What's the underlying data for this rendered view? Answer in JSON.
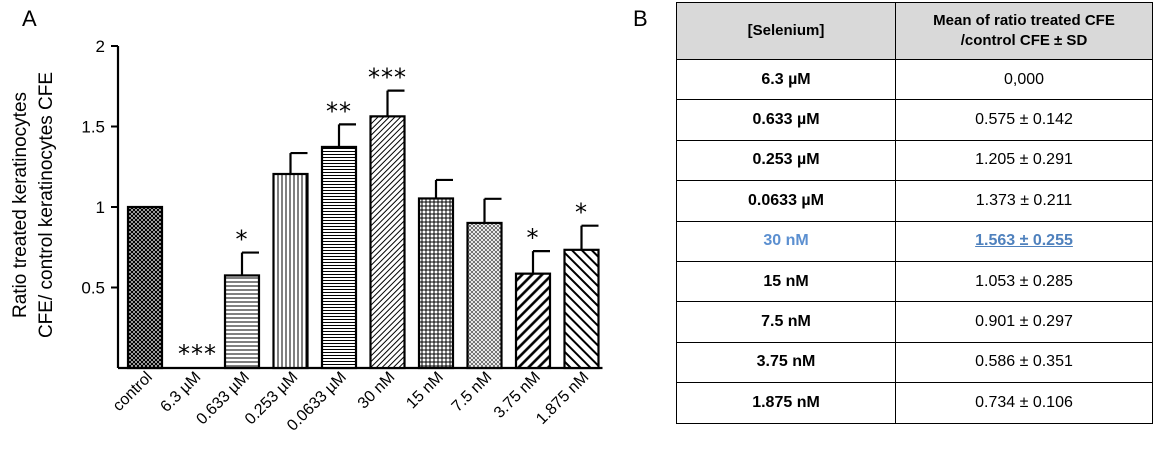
{
  "panel_a_label": "A",
  "panel_b_label": "B",
  "chart_data": {
    "type": "bar",
    "ylabel_line1": "Ratio treated keratinocytes",
    "ylabel_line2": "CFE/ control keratinocytes CFE",
    "xlabel": "",
    "ylim": [
      0,
      2
    ],
    "yticks": [
      0.5,
      1,
      1.5,
      2
    ],
    "ytick_labels": [
      "0.5",
      "1",
      "1.5",
      "2"
    ],
    "grid": false,
    "categories": [
      "control",
      "6.3 µM",
      "0.633 µM",
      "0.253 µM",
      "0.0633 µM",
      "30  nM",
      "15 nM",
      "7.5 nM",
      "3.75 nM",
      "1.875 nM"
    ],
    "values": [
      1.0,
      0.0,
      0.575,
      1.205,
      1.373,
      1.563,
      1.053,
      0.901,
      0.586,
      0.734
    ],
    "errors": [
      0,
      0,
      0.142,
      0.13,
      0.14,
      0.16,
      0.115,
      0.15,
      0.14,
      0.15
    ],
    "significance": [
      "",
      "***",
      "*",
      "",
      "**",
      "***",
      "",
      "",
      "*",
      "*"
    ],
    "patterns": [
      "crosshatch",
      "none",
      "horizontal",
      "vertical",
      "horizontal-dense",
      "diagonal-fine",
      "grid",
      "dots",
      "diagonal-bold",
      "diagonal-back"
    ]
  },
  "table": {
    "header": [
      "[Selenium]",
      "Mean of ratio treated CFE /control CFE ± SD"
    ],
    "header_line1": "Mean of ratio treated CFE",
    "header_line2": "/control CFE ± SD",
    "rows": [
      {
        "conc": "6.3 µM",
        "value": "0,000"
      },
      {
        "conc": "0.633 µM",
        "value": "0.575 ± 0.142"
      },
      {
        "conc": "0.253 µM",
        "value": "1.205 ± 0.291"
      },
      {
        "conc": "0.0633 µM",
        "value": "1.373 ± 0.211"
      },
      {
        "conc": "30 nM",
        "value": "1.563 ± 0.255",
        "highlight": true
      },
      {
        "conc": "15 nM",
        "value": "1.053 ±  0.285"
      },
      {
        "conc": "7.5 nM",
        "value": "0.901 ± 0.297"
      },
      {
        "conc": "3.75 nM",
        "value": "0.586 ± 0.351"
      },
      {
        "conc": "1.875 nM",
        "value": "0.734 ± 0.106"
      }
    ]
  }
}
